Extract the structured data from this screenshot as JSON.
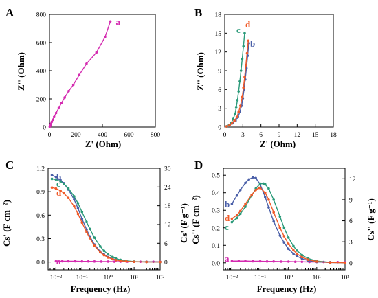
{
  "colors": {
    "a": "#d42bb0",
    "b": "#4a5fa8",
    "c": "#2a9a79",
    "d": "#f05a28"
  },
  "chart_data": [
    {
      "panel": "A",
      "type": "line",
      "xlabel": "Z' (Ohm)",
      "ylabel": "Z'' (Ohm)",
      "xlim": [
        0,
        800
      ],
      "ylim": [
        0,
        800
      ],
      "xticks": [
        0,
        200,
        400,
        600,
        800
      ],
      "yticks": [
        0,
        200,
        400,
        600,
        800
      ],
      "series": [
        {
          "name": "a",
          "color": "#d42bb0",
          "x": [
            2,
            5,
            8,
            12,
            18,
            25,
            35,
            50,
            70,
            90,
            115,
            145,
            180,
            225,
            280,
            355,
            420,
            460
          ],
          "y": [
            2,
            8,
            15,
            25,
            38,
            52,
            72,
            100,
            135,
            170,
            210,
            255,
            300,
            370,
            450,
            530,
            640,
            750
          ]
        }
      ]
    },
    {
      "panel": "B",
      "type": "line",
      "xlabel": "Z' (Ohm)",
      "ylabel": "Z'' (Ohm)",
      "xlim": [
        0,
        18
      ],
      "ylim": [
        0,
        18
      ],
      "xticks": [
        0,
        3,
        6,
        9,
        12,
        15,
        18
      ],
      "yticks": [
        0,
        3,
        6,
        9,
        12,
        15,
        18
      ],
      "series": [
        {
          "name": "b",
          "color": "#4a5fa8",
          "x": [
            0.3,
            0.8,
            1.3,
            1.8,
            2.2,
            2.5,
            2.8,
            3.0,
            3.2,
            3.4,
            3.6,
            3.8,
            4.0
          ],
          "y": [
            0.1,
            0.3,
            0.6,
            1.0,
            1.6,
            2.4,
            3.4,
            4.6,
            6.0,
            7.6,
            9.4,
            11.4,
            13.4
          ]
        },
        {
          "name": "c",
          "color": "#2a9a79",
          "x": [
            0.3,
            0.7,
            1.1,
            1.4,
            1.7,
            1.9,
            2.1,
            2.3,
            2.5,
            2.7,
            2.9,
            3.1,
            3.3
          ],
          "y": [
            0.1,
            0.3,
            0.7,
            1.3,
            2.1,
            3.1,
            4.3,
            5.7,
            7.3,
            9.0,
            10.9,
            12.9,
            15.0
          ]
        },
        {
          "name": "d",
          "color": "#f05a28",
          "x": [
            0.3,
            0.8,
            1.2,
            1.6,
            2.0,
            2.3,
            2.6,
            2.9,
            3.1,
            3.3,
            3.5,
            3.7,
            3.9
          ],
          "y": [
            0.1,
            0.3,
            0.6,
            1.0,
            1.6,
            2.4,
            3.4,
            4.8,
            6.3,
            8.0,
            9.9,
            11.8,
            13.8
          ]
        }
      ]
    },
    {
      "panel": "C",
      "type": "line",
      "xlabel": "Frequency (Hz)",
      "ylabel": "Cs' (F cm⁻²)",
      "ylabel2": "Cs' (F g⁻¹)",
      "xscale": "log",
      "xlim": [
        0.005,
        100
      ],
      "xticks": [
        "10⁻²",
        "10⁻¹",
        "10⁰",
        "10¹",
        "10²"
      ],
      "ylim": [
        -0.1,
        1.2
      ],
      "yticks": [
        "0.0",
        "0.3",
        "0.6",
        "0.9",
        "1.2"
      ],
      "y2lim": [
        -2.5,
        30
      ],
      "y2ticks": [
        "0",
        "6",
        "12",
        "18",
        "24",
        "30"
      ],
      "series": [
        {
          "name": "a",
          "color": "#d42bb0",
          "axis": "left",
          "x": [
            0.01,
            0.0175,
            0.03,
            0.055,
            0.1,
            0.175,
            0.3,
            0.55,
            1,
            1.75,
            3,
            5.5,
            10,
            17.5,
            30,
            55,
            100
          ],
          "y": [
            0.01,
            0.01,
            0.01,
            0.01,
            0.008,
            0.008,
            0.007,
            0.006,
            0.006,
            0.005,
            0.005,
            0.005,
            0.004,
            0.004,
            0.004,
            0.004,
            0.004
          ]
        },
        {
          "name": "b",
          "color": "#4a5fa8",
          "axis": "right",
          "x": [
            0.007,
            0.01,
            0.015,
            0.02,
            0.03,
            0.05,
            0.07,
            0.1,
            0.15,
            0.2,
            0.3,
            0.5,
            0.7,
            1,
            1.5,
            2,
            3,
            5,
            10,
            30,
            100
          ],
          "y": [
            27.8,
            27.2,
            26.2,
            25.2,
            23.2,
            20.0,
            17.2,
            13.8,
            10.4,
            8.2,
            5.6,
            3.4,
            2.4,
            1.6,
            1.0,
            0.7,
            0.45,
            0.25,
            0.1,
            0.03,
            0.01
          ]
        },
        {
          "name": "c",
          "color": "#2a9a79",
          "axis": "right",
          "x": [
            0.007,
            0.01,
            0.015,
            0.02,
            0.03,
            0.05,
            0.07,
            0.1,
            0.15,
            0.2,
            0.3,
            0.5,
            0.7,
            1,
            1.5,
            2,
            3,
            5,
            10,
            30,
            100
          ],
          "y": [
            26.6,
            26.4,
            25.8,
            25.0,
            23.6,
            21.0,
            18.8,
            16.0,
            12.8,
            10.6,
            7.8,
            5.0,
            3.6,
            2.5,
            1.6,
            1.1,
            0.7,
            0.4,
            0.15,
            0.04,
            0.01
          ]
        },
        {
          "name": "d",
          "color": "#f05a28",
          "axis": "right",
          "x": [
            0.007,
            0.01,
            0.015,
            0.02,
            0.03,
            0.05,
            0.07,
            0.1,
            0.15,
            0.2,
            0.3,
            0.5,
            0.7,
            1,
            1.5,
            2,
            3,
            5,
            10,
            30,
            100
          ],
          "y": [
            23.8,
            23.5,
            22.8,
            22.0,
            20.5,
            17.8,
            15.4,
            12.6,
            9.6,
            7.6,
            5.2,
            3.1,
            2.2,
            1.45,
            0.9,
            0.62,
            0.4,
            0.22,
            0.08,
            0.02,
            0.01
          ]
        }
      ],
      "labels": [
        {
          "text": "b",
          "color": "#4a5fa8"
        },
        {
          "text": "c",
          "color": "#2a9a79"
        },
        {
          "text": "d",
          "color": "#f05a28"
        },
        {
          "text": "a",
          "color": "#d42bb0"
        }
      ]
    },
    {
      "panel": "D",
      "type": "line",
      "xlabel": "Frequency (Hz)",
      "ylabel": "Cs'' (F cm⁻²)",
      "ylabel2": "Cs'' (F g⁻¹)",
      "xscale": "log",
      "xlim": [
        0.005,
        100
      ],
      "xticks": [
        "10⁻²",
        "10⁻¹",
        "10⁰",
        "10¹",
        "10²"
      ],
      "ylim": [
        -0.04,
        0.54
      ],
      "yticks": [
        "0.0",
        "0.1",
        "0.2",
        "0.3",
        "0.4",
        "0.5"
      ],
      "y2lim": [
        -1,
        13.5
      ],
      "y2ticks": [
        "0",
        "3",
        "6",
        "9",
        "12"
      ],
      "series": [
        {
          "name": "a",
          "color": "#d42bb0",
          "axis": "left",
          "x": [
            0.01,
            0.0175,
            0.03,
            0.055,
            0.1,
            0.175,
            0.3,
            0.55,
            1,
            1.75,
            3,
            5.5,
            10,
            17.5,
            30,
            55,
            100
          ],
          "y": [
            0.01,
            0.01,
            0.01,
            0.009,
            0.009,
            0.008,
            0.008,
            0.007,
            0.007,
            0.006,
            0.006,
            0.005,
            0.005,
            0.005,
            0.004,
            0.004,
            0.004
          ]
        },
        {
          "name": "b",
          "color": "#4a5fa8",
          "axis": "right",
          "x": [
            0.01,
            0.015,
            0.02,
            0.03,
            0.04,
            0.055,
            0.07,
            0.1,
            0.15,
            0.2,
            0.3,
            0.5,
            0.7,
            1,
            1.5,
            2,
            3,
            5,
            10,
            30,
            100
          ],
          "y": [
            8.4,
            9.6,
            10.4,
            11.4,
            11.9,
            12.2,
            12.1,
            11.2,
            9.4,
            7.9,
            5.9,
            3.9,
            2.9,
            2.0,
            1.3,
            0.95,
            0.6,
            0.32,
            0.13,
            0.04,
            0.01
          ]
        },
        {
          "name": "c",
          "color": "#2a9a79",
          "axis": "right",
          "x": [
            0.01,
            0.015,
            0.02,
            0.03,
            0.05,
            0.07,
            0.1,
            0.13,
            0.15,
            0.2,
            0.3,
            0.5,
            0.7,
            1,
            1.5,
            2,
            3,
            5,
            10,
            30,
            100
          ],
          "y": [
            5.8,
            6.4,
            7.0,
            8.0,
            9.6,
            10.6,
            11.3,
            11.3,
            11.2,
            10.6,
            9.0,
            6.6,
            5.0,
            3.6,
            2.4,
            1.75,
            1.1,
            0.62,
            0.25,
            0.07,
            0.02
          ]
        },
        {
          "name": "d",
          "color": "#f05a28",
          "axis": "right",
          "x": [
            0.01,
            0.015,
            0.02,
            0.03,
            0.05,
            0.07,
            0.09,
            0.1,
            0.15,
            0.2,
            0.3,
            0.5,
            0.7,
            1,
            1.5,
            2,
            3,
            5,
            10,
            30,
            100
          ],
          "y": [
            6.3,
            6.8,
            7.4,
            8.4,
            9.7,
            10.4,
            10.7,
            10.7,
            10.0,
            9.0,
            7.2,
            5.0,
            3.8,
            2.7,
            1.8,
            1.3,
            0.82,
            0.45,
            0.18,
            0.05,
            0.01
          ]
        }
      ],
      "labels": [
        {
          "text": "b",
          "color": "#4a5fa8"
        },
        {
          "text": "d",
          "color": "#f05a28"
        },
        {
          "text": "c",
          "color": "#2a9a79"
        },
        {
          "text": "a",
          "color": "#d42bb0"
        }
      ]
    }
  ]
}
